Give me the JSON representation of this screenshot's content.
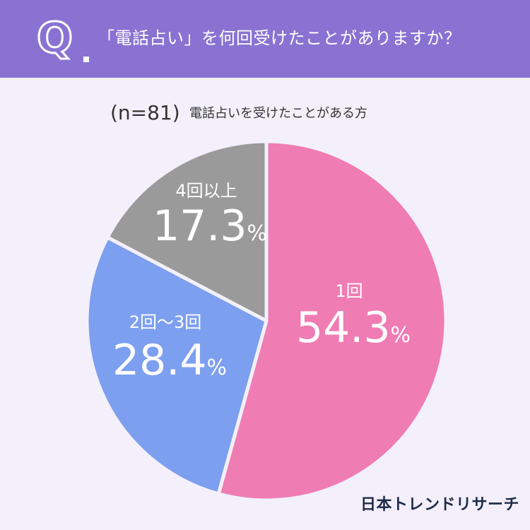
{
  "header": {
    "q_letter": "Q",
    "question": "「電話占い」を何回受けたことがありますか？"
  },
  "sample_size": "(n=81)",
  "subtitle": "電話占いを受けたことがある方",
  "logo_text": "日本トレンドリサーチ",
  "chart_data": {
    "type": "pie",
    "title": "「電話占い」を何回受けたことがありますか？",
    "slices": [
      {
        "label": "1回",
        "value": 54.3,
        "display": "54.3",
        "unit": "%",
        "color": "#f07cb4"
      },
      {
        "label": "2回〜3回",
        "value": 28.4,
        "display": "28.4",
        "unit": "%",
        "color": "#7d9ff0"
      },
      {
        "label": "4回以上",
        "value": 17.3,
        "display": "17.3",
        "unit": "%",
        "color": "#9a9a9a"
      }
    ],
    "start": "12 o'clock",
    "direction": "clockwise",
    "separator_color": "#f3f0fb"
  }
}
